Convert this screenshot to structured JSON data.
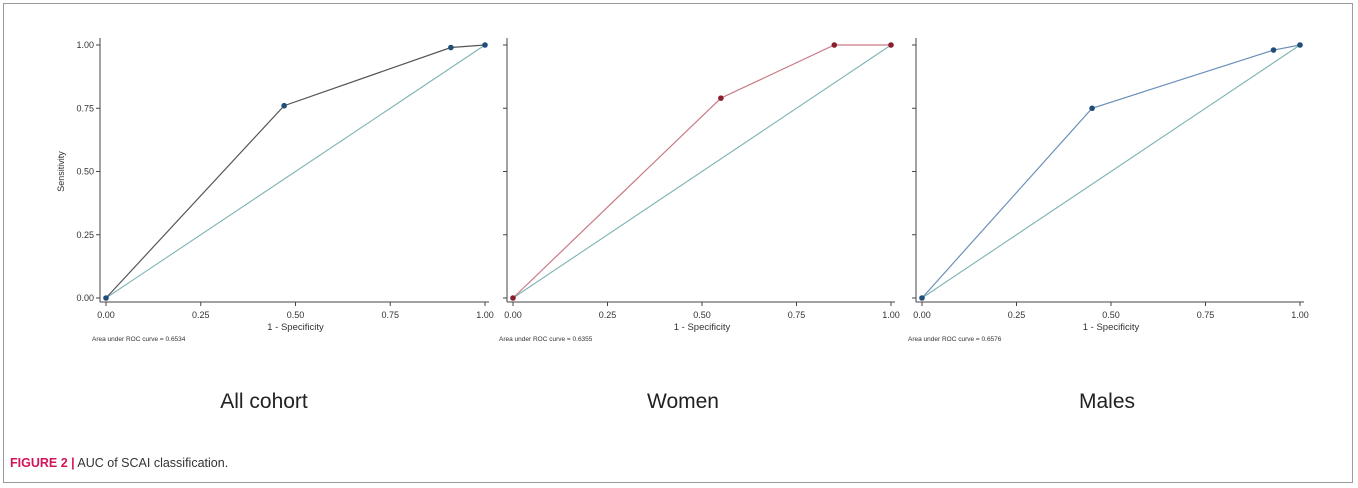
{
  "figure": {
    "number": "FIGURE 2 |",
    "text": "AUC of SCAI classification."
  },
  "chart_data": [
    {
      "type": "line",
      "panel_title": "All cohort",
      "xlabel": "1 - Specificity",
      "ylabel": "Sensitivity",
      "auc_text": "Area under ROC curve = 0.6534",
      "xlim": [
        0,
        1
      ],
      "ylim": [
        0,
        1
      ],
      "x_ticks": [
        "0.00",
        "0.25",
        "0.50",
        "0.75",
        "1.00"
      ],
      "y_ticks": [
        "0.00",
        "0.25",
        "0.50",
        "0.75",
        "1.00"
      ],
      "grid": false,
      "curve_color": "#555555",
      "marker_color": "#1f4e79",
      "reference_color": "#7fb3b3",
      "series": [
        {
          "x": [
            0.0,
            0.47,
            0.91,
            1.0
          ],
          "y": [
            0.0,
            0.76,
            0.99,
            1.0
          ]
        }
      ]
    },
    {
      "type": "line",
      "panel_title": "Women",
      "xlabel": "1 - Specificity",
      "ylabel": "",
      "auc_text": "Area under ROC curve = 0.6355",
      "xlim": [
        0,
        1
      ],
      "ylim": [
        0,
        1
      ],
      "x_ticks": [
        "0.00",
        "0.25",
        "0.50",
        "0.75",
        "1.00"
      ],
      "y_ticks": [],
      "grid": false,
      "curve_color": "#c97a85",
      "marker_color": "#8b1e2d",
      "reference_color": "#7fb3b3",
      "series": [
        {
          "x": [
            0.0,
            0.55,
            0.85,
            1.0
          ],
          "y": [
            0.0,
            0.79,
            1.0,
            1.0
          ]
        }
      ]
    },
    {
      "type": "line",
      "panel_title": "Males",
      "xlabel": "1 - Specificity",
      "ylabel": "",
      "auc_text": "Area under ROC curve = 0.6576",
      "xlim": [
        0,
        1
      ],
      "ylim": [
        0,
        1
      ],
      "x_ticks": [
        "0.00",
        "0.25",
        "0.50",
        "0.75",
        "1.00"
      ],
      "y_ticks": [],
      "grid": false,
      "curve_color": "#6b8fb8",
      "marker_color": "#1f4e79",
      "reference_color": "#7fb3b3",
      "series": [
        {
          "x": [
            0.0,
            0.45,
            0.93,
            1.0
          ],
          "y": [
            0.0,
            0.75,
            0.98,
            1.0
          ]
        }
      ]
    }
  ]
}
